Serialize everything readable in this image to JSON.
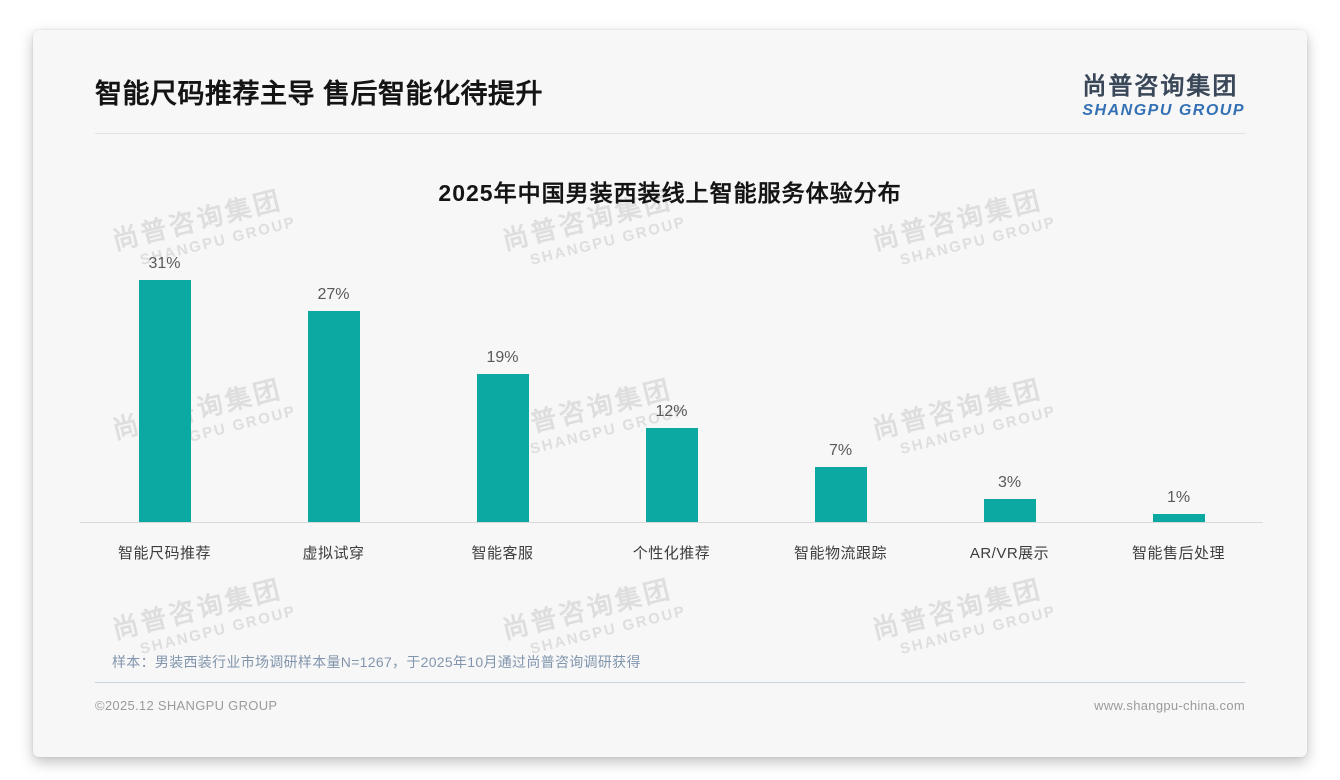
{
  "page": {
    "title": "智能尺码推荐主导 售后智能化待提升",
    "logo": {
      "cn": "尚普咨询集团",
      "en": "SHANGPU GROUP"
    },
    "note": "样本：男装西装行业市场调研样本量N=1267，于2025年10月通过尚普咨询调研获得",
    "footer": {
      "copyright": "©2025.12 SHANGPU GROUP",
      "website": "www.shangpu-china.com"
    },
    "watermark": {
      "cn": "尚普咨询集团",
      "en": "SHANGPU GROUP"
    }
  },
  "chart_data": {
    "type": "bar",
    "title": "2025年中国男装西装线上智能服务体验分布",
    "categories": [
      "智能尺码推荐",
      "虚拟试穿",
      "智能客服",
      "个性化推荐",
      "智能物流跟踪",
      "AR/VR展示",
      "智能售后处理"
    ],
    "values": [
      31,
      27,
      19,
      12,
      7,
      3,
      1
    ],
    "value_labels": [
      "31%",
      "27%",
      "19%",
      "12%",
      "7%",
      "3%",
      "1%"
    ],
    "unit": "%",
    "ylim": [
      0,
      33
    ],
    "grid": false,
    "legend": false,
    "bar_color": "#0ca9a3",
    "axis_color": "#d9d9d9"
  }
}
